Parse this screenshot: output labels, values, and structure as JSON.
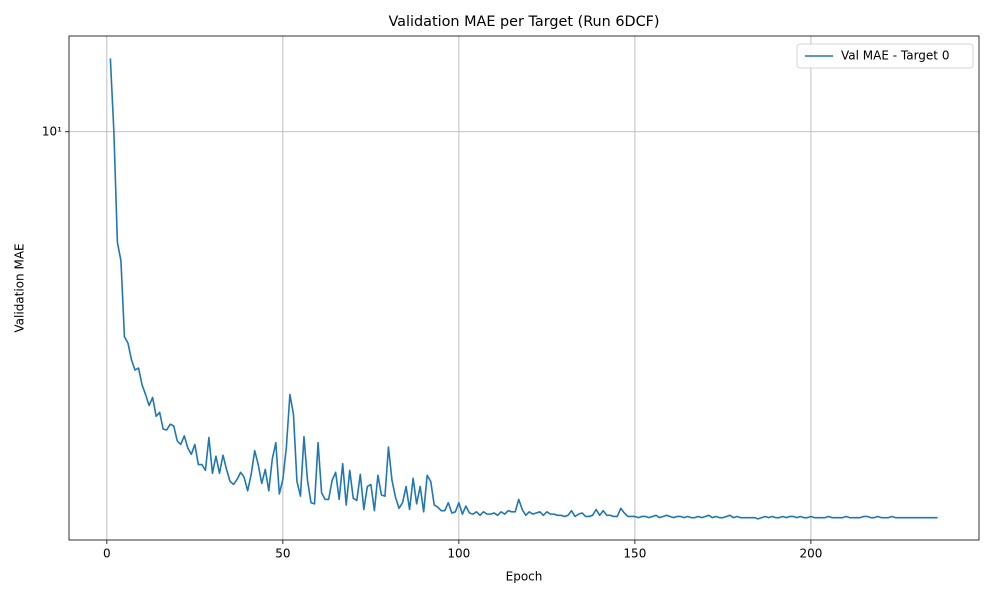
{
  "chart_data": {
    "type": "line",
    "title": "Validation MAE per Target (Run 6DCF)",
    "x_label": "Epoch",
    "y_label": "Validation MAE",
    "x": [
      1,
      2,
      3,
      4,
      5,
      6,
      7,
      8,
      9,
      10,
      11,
      12,
      13,
      14,
      15,
      16,
      17,
      18,
      19,
      20,
      21,
      22,
      23,
      24,
      25,
      26,
      27,
      28,
      29,
      30,
      31,
      32,
      33,
      34,
      35,
      36,
      37,
      38,
      39,
      40,
      41,
      42,
      43,
      44,
      45,
      46,
      47,
      48,
      49,
      50,
      51,
      52,
      53,
      54,
      55,
      56,
      57,
      58,
      59,
      60,
      61,
      62,
      63,
      64,
      65,
      66,
      67,
      68,
      69,
      70,
      71,
      72,
      73,
      74,
      75,
      76,
      77,
      78,
      79,
      80,
      81,
      82,
      83,
      84,
      85,
      86,
      87,
      88,
      89,
      90,
      91,
      92,
      93,
      94,
      95,
      96,
      97,
      98,
      99,
      100,
      101,
      102,
      103,
      104,
      105,
      106,
      107,
      108,
      109,
      110,
      111,
      112,
      113,
      114,
      115,
      116,
      117,
      118,
      119,
      120,
      121,
      122,
      123,
      124,
      125,
      126,
      127,
      128,
      129,
      130,
      131,
      132,
      133,
      134,
      135,
      136,
      137,
      138,
      139,
      140,
      141,
      142,
      143,
      144,
      145,
      146,
      147,
      148,
      149,
      150,
      151,
      152,
      153,
      154,
      155,
      156,
      157,
      158,
      159,
      160,
      161,
      162,
      163,
      164,
      165,
      166,
      167,
      168,
      169,
      170,
      171,
      172,
      173,
      174,
      175,
      176,
      177,
      178,
      179,
      180,
      181,
      182,
      183,
      184,
      185,
      186,
      187,
      188,
      189,
      190,
      191,
      192,
      193,
      194,
      195,
      196,
      197,
      198,
      199,
      200,
      201,
      202,
      203,
      204,
      205,
      206,
      207,
      208,
      209,
      210,
      211,
      212,
      213,
      214,
      215,
      216,
      217,
      218,
      219,
      220,
      221,
      222,
      223,
      224,
      225,
      226,
      227,
      228,
      229,
      230,
      231,
      232,
      233,
      234,
      235,
      236
    ],
    "series": [
      {
        "name": "Val MAE - Target 0",
        "color": "#1f77b4",
        "values": [
          13.5,
          10.0,
          6.36,
          5.9,
          4.32,
          4.21,
          3.93,
          3.77,
          3.8,
          3.55,
          3.41,
          3.26,
          3.37,
          3.12,
          3.17,
          2.96,
          2.95,
          3.02,
          3.0,
          2.82,
          2.78,
          2.88,
          2.74,
          2.67,
          2.78,
          2.56,
          2.56,
          2.5,
          2.86,
          2.47,
          2.65,
          2.47,
          2.66,
          2.51,
          2.39,
          2.36,
          2.41,
          2.48,
          2.43,
          2.3,
          2.46,
          2.71,
          2.56,
          2.37,
          2.51,
          2.3,
          2.62,
          2.8,
          2.27,
          2.41,
          2.75,
          3.41,
          3.15,
          2.39,
          2.25,
          2.87,
          2.4,
          2.19,
          2.18,
          2.8,
          2.28,
          2.22,
          2.22,
          2.4,
          2.48,
          2.22,
          2.57,
          2.17,
          2.5,
          2.23,
          2.21,
          2.46,
          2.13,
          2.34,
          2.36,
          2.12,
          2.45,
          2.26,
          2.25,
          2.75,
          2.4,
          2.24,
          2.14,
          2.19,
          2.34,
          2.13,
          2.42,
          2.18,
          2.34,
          2.11,
          2.45,
          2.39,
          2.17,
          2.15,
          2.12,
          2.12,
          2.19,
          2.1,
          2.11,
          2.19,
          2.09,
          2.16,
          2.1,
          2.09,
          2.11,
          2.08,
          2.11,
          2.09,
          2.09,
          2.1,
          2.08,
          2.11,
          2.09,
          2.12,
          2.11,
          2.11,
          2.22,
          2.13,
          2.08,
          2.11,
          2.09,
          2.1,
          2.11,
          2.08,
          2.11,
          2.09,
          2.09,
          2.08,
          2.08,
          2.07,
          2.08,
          2.12,
          2.07,
          2.09,
          2.1,
          2.07,
          2.07,
          2.08,
          2.13,
          2.08,
          2.12,
          2.08,
          2.08,
          2.07,
          2.07,
          2.14,
          2.1,
          2.07,
          2.07,
          2.07,
          2.06,
          2.07,
          2.07,
          2.06,
          2.07,
          2.08,
          2.06,
          2.07,
          2.08,
          2.07,
          2.06,
          2.07,
          2.07,
          2.06,
          2.07,
          2.06,
          2.06,
          2.07,
          2.06,
          2.07,
          2.08,
          2.06,
          2.07,
          2.06,
          2.06,
          2.07,
          2.08,
          2.06,
          2.07,
          2.06,
          2.06,
          2.06,
          2.06,
          2.06,
          2.05,
          2.06,
          2.07,
          2.06,
          2.07,
          2.06,
          2.06,
          2.07,
          2.06,
          2.07,
          2.07,
          2.06,
          2.07,
          2.06,
          2.06,
          2.07,
          2.06,
          2.06,
          2.06,
          2.06,
          2.07,
          2.06,
          2.06,
          2.06,
          2.06,
          2.07,
          2.06,
          2.06,
          2.06,
          2.06,
          2.07,
          2.07,
          2.06,
          2.06,
          2.07,
          2.06,
          2.06,
          2.06,
          2.07,
          2.06,
          2.06,
          2.06,
          2.06,
          2.06,
          2.06,
          2.06,
          2.06,
          2.06,
          2.06,
          2.06,
          2.06,
          2.06
        ]
      }
    ],
    "xlim": [
      -10.75,
      247.75
    ],
    "xticks": [
      0,
      50,
      100,
      150,
      200
    ],
    "ylim": [
      1.88,
      14.8
    ],
    "yticks": [
      {
        "value": 10,
        "label": "10¹"
      }
    ],
    "yscale": "log",
    "grid": true,
    "legend": "upper right"
  }
}
